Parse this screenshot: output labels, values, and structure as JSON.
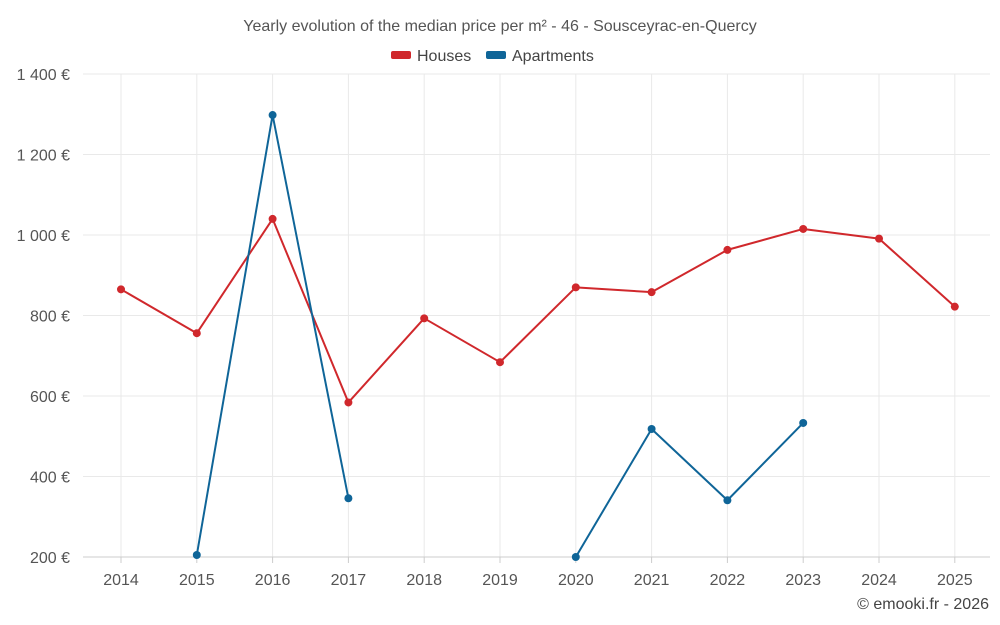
{
  "chart_data": {
    "type": "line",
    "title": "Yearly evolution of the median price per m² - 46 - Sousceyrac-en-Quercy",
    "categories": [
      "2014",
      "2015",
      "2016",
      "2017",
      "2018",
      "2019",
      "2020",
      "2021",
      "2022",
      "2023",
      "2024",
      "2025"
    ],
    "y_ticks": [
      "200 €",
      "400 €",
      "600 €",
      "800 €",
      "1 000 €",
      "1 200 €",
      "1 400 €"
    ],
    "y_tick_values": [
      200,
      400,
      600,
      800,
      1000,
      1200,
      1400
    ],
    "ylim": [
      200,
      1400
    ],
    "grid": true,
    "legend_position": "top-center",
    "series": [
      {
        "name": "Houses",
        "color": "#d0282c",
        "values": [
          865,
          756,
          1040,
          584,
          793,
          684,
          870,
          858,
          963,
          1015,
          991,
          822
        ]
      },
      {
        "name": "Apartments",
        "color": "#0f6598",
        "values": [
          null,
          205,
          1298,
          346,
          null,
          null,
          200,
          518,
          341,
          533,
          null,
          null
        ]
      }
    ]
  },
  "credit": "© emooki.fr - 2026"
}
